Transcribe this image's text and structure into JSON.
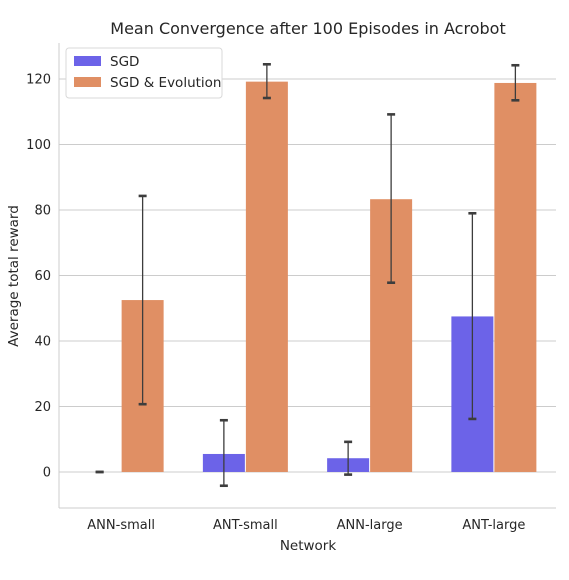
{
  "chart_data": {
    "type": "bar",
    "title": "Mean Convergence after 100 Episodes in Acrobot",
    "xlabel": "Network",
    "ylabel": "Average total reward",
    "categories": [
      "ANN-small",
      "ANT-small",
      "ANN-large",
      "ANT-large"
    ],
    "series": [
      {
        "name": "SGD",
        "color": "#6c63e8",
        "values": [
          0,
          5.5,
          4.2,
          47.5
        ],
        "error_low": [
          0,
          -4.2,
          -0.8,
          16.2
        ],
        "error_high": [
          0,
          15.8,
          9.2,
          79.0
        ]
      },
      {
        "name": "SGD & Evolution",
        "color": "#e08f64",
        "values": [
          52.5,
          119.2,
          83.3,
          118.8
        ],
        "error_low": [
          20.7,
          114.2,
          57.8,
          113.5
        ],
        "error_high": [
          84.3,
          124.5,
          109.2,
          124.2
        ]
      }
    ],
    "ylim": [
      -11,
      131
    ],
    "yticks": [
      0,
      20,
      40,
      60,
      80,
      100,
      120
    ],
    "grid": "horizontal",
    "legend_position": "top-left"
  }
}
